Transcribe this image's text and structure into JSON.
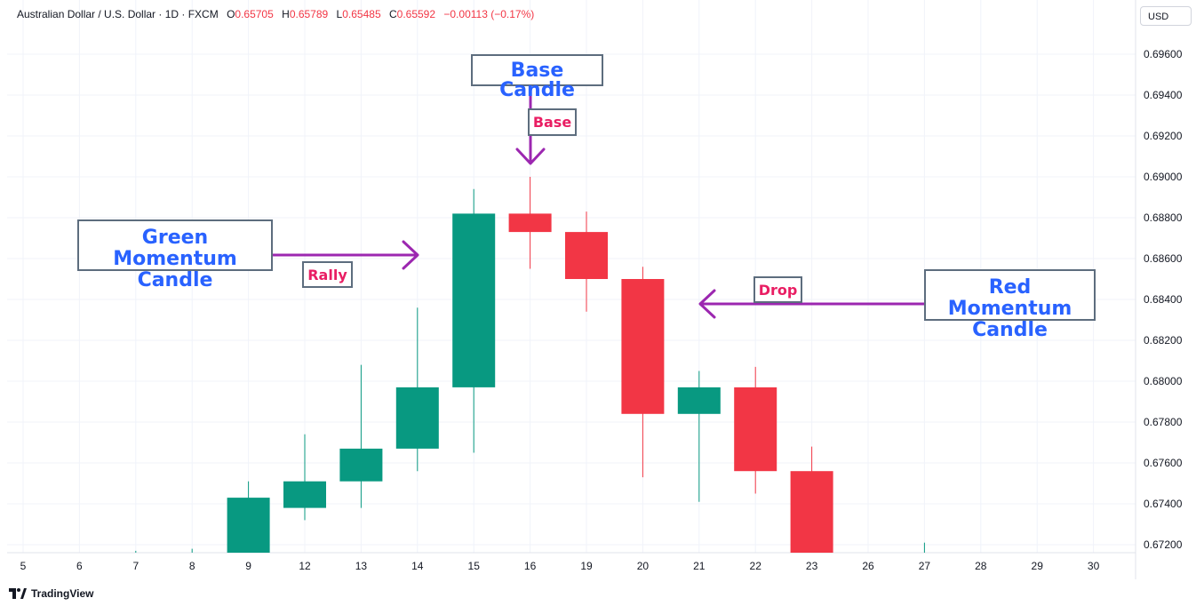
{
  "header": {
    "symbol": "Australian Dollar / U.S. Dollar · 1D · FXCM",
    "o_label": "O",
    "o_value": "0.65705",
    "h_label": "H",
    "h_value": "0.65789",
    "l_label": "L",
    "l_value": "0.65485",
    "c_label": "C",
    "c_value": "0.65592",
    "change": "−0.00113 (−0.17%)"
  },
  "currency": "USD",
  "brand": "TradingView",
  "colors": {
    "up": "#089981",
    "down": "#f23645",
    "arrow": "#9c27b0",
    "annotation_big": "#2962ff",
    "annotation_small": "#e91e63"
  },
  "annotations": {
    "base_candle": "Base Candle",
    "base": "Base",
    "green_momentum_line1": "Green Momentum",
    "green_momentum_line2": "Candle",
    "rally": "Rally",
    "drop": "Drop",
    "red_momentum_line1": "Red Momentum",
    "red_momentum_line2": "Candle"
  },
  "chart_data": {
    "type": "candlestick",
    "x_ticks": [
      "5",
      "6",
      "7",
      "8",
      "9",
      "12",
      "13",
      "14",
      "15",
      "16",
      "19",
      "20",
      "21",
      "22",
      "23",
      "26",
      "27",
      "28",
      "29",
      "30"
    ],
    "y_ticks": [
      "0.67200",
      "0.67400",
      "0.67600",
      "0.67800",
      "0.68000",
      "0.68200",
      "0.68400",
      "0.68600",
      "0.68800",
      "0.69000",
      "0.69200",
      "0.69400",
      "0.69600"
    ],
    "ylim": [
      0.6716,
      0.6985
    ],
    "grid": true,
    "candles": [
      {
        "date": "7",
        "open": 0.6716,
        "high": 0.6717,
        "low": 0.6716,
        "close": 0.6716
      },
      {
        "date": "8",
        "open": 0.6716,
        "high": 0.6718,
        "low": 0.6716,
        "close": 0.6716
      },
      {
        "date": "9",
        "open": 0.6716,
        "high": 0.6751,
        "low": 0.6716,
        "close": 0.6743
      },
      {
        "date": "12",
        "open": 0.6738,
        "high": 0.6774,
        "low": 0.6732,
        "close": 0.6751
      },
      {
        "date": "13",
        "open": 0.6751,
        "high": 0.6808,
        "low": 0.6738,
        "close": 0.6767
      },
      {
        "date": "14",
        "open": 0.6767,
        "high": 0.6836,
        "low": 0.6756,
        "close": 0.6797
      },
      {
        "date": "15",
        "open": 0.6797,
        "high": 0.6894,
        "low": 0.6765,
        "close": 0.6882
      },
      {
        "date": "16",
        "open": 0.6882,
        "high": 0.69,
        "low": 0.6855,
        "close": 0.6873
      },
      {
        "date": "19",
        "open": 0.6873,
        "high": 0.6883,
        "low": 0.6834,
        "close": 0.685
      },
      {
        "date": "20",
        "open": 0.685,
        "high": 0.6856,
        "low": 0.6753,
        "close": 0.6784
      },
      {
        "date": "21",
        "open": 0.6784,
        "high": 0.6805,
        "low": 0.6741,
        "close": 0.6797
      },
      {
        "date": "22",
        "open": 0.6797,
        "high": 0.6807,
        "low": 0.6745,
        "close": 0.6756
      },
      {
        "date": "23",
        "open": 0.6756,
        "high": 0.6768,
        "low": 0.6716,
        "close": 0.6716
      },
      {
        "date": "27",
        "open": 0.6716,
        "high": 0.6721,
        "low": 0.6716,
        "close": 0.6716
      }
    ]
  }
}
